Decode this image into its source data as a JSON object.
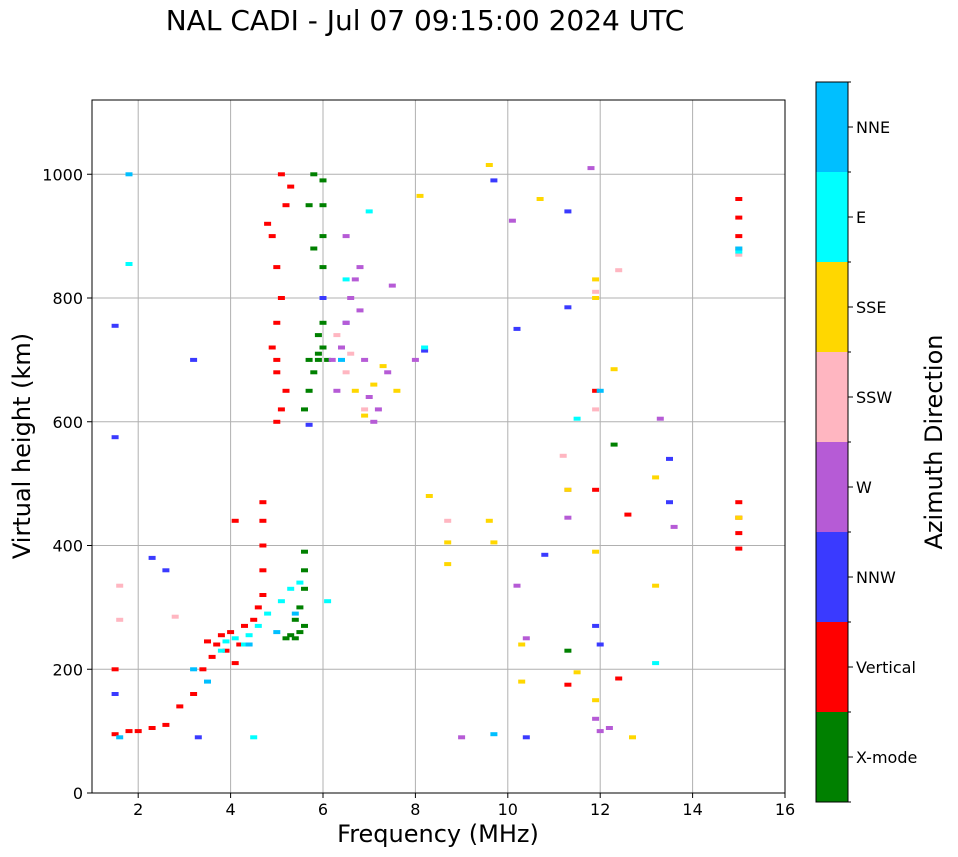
{
  "chart_data": {
    "type": "scatter",
    "title": "NAL CADI - Jul 07 09:15:00 2024 UTC",
    "xlabel": "Frequency (MHz)",
    "ylabel": "Virtual height (km)",
    "xlim": [
      1,
      16
    ],
    "ylim": [
      0,
      1120
    ],
    "xticks": [
      2,
      4,
      6,
      8,
      10,
      12,
      14,
      16
    ],
    "yticks": [
      0,
      200,
      400,
      600,
      800,
      1000
    ],
    "grid": true,
    "colorbar": {
      "label": "Azimuth Direction",
      "categories": [
        {
          "name": "X-mode",
          "color": "#008000"
        },
        {
          "name": "Vertical",
          "color": "#ff0000"
        },
        {
          "name": "NNW",
          "color": "#3a3aff"
        },
        {
          "name": "W",
          "color": "#b65bd6"
        },
        {
          "name": "SSW",
          "color": "#ffb6c1"
        },
        {
          "name": "SSE",
          "color": "#ffd700"
        },
        {
          "name": "E",
          "color": "#00ffff"
        },
        {
          "name": "NNE",
          "color": "#00bfff"
        }
      ]
    },
    "series": [
      {
        "name": "X-mode",
        "points": [
          [
            5.4,
            250
          ],
          [
            5.5,
            260
          ],
          [
            5.6,
            270
          ],
          [
            5.4,
            280
          ],
          [
            5.5,
            300
          ],
          [
            5.6,
            330
          ],
          [
            5.6,
            360
          ],
          [
            5.6,
            390
          ],
          [
            5.3,
            255
          ],
          [
            5.2,
            250
          ],
          [
            5.6,
            620
          ],
          [
            5.7,
            650
          ],
          [
            5.8,
            680
          ],
          [
            5.9,
            700
          ],
          [
            6.0,
            720
          ],
          [
            6.0,
            760
          ],
          [
            6.0,
            800
          ],
          [
            6.0,
            850
          ],
          [
            6.0,
            900
          ],
          [
            6.0,
            950
          ],
          [
            6.0,
            990
          ],
          [
            5.8,
            1000
          ],
          [
            5.7,
            950
          ],
          [
            5.8,
            880
          ],
          [
            5.9,
            740
          ],
          [
            5.7,
            700
          ],
          [
            12.3,
            563
          ],
          [
            11.3,
            230
          ],
          [
            6.1,
            700
          ],
          [
            5.9,
            710
          ]
        ]
      },
      {
        "name": "Vertical",
        "points": [
          [
            1.5,
            95
          ],
          [
            1.8,
            100
          ],
          [
            2.0,
            100
          ],
          [
            2.3,
            105
          ],
          [
            2.6,
            110
          ],
          [
            2.9,
            140
          ],
          [
            3.2,
            160
          ],
          [
            3.4,
            200
          ],
          [
            3.6,
            220
          ],
          [
            3.7,
            240
          ],
          [
            3.8,
            255
          ],
          [
            4.0,
            260
          ],
          [
            4.2,
            240
          ],
          [
            4.3,
            270
          ],
          [
            4.5,
            280
          ],
          [
            4.6,
            300
          ],
          [
            4.7,
            320
          ],
          [
            4.7,
            360
          ],
          [
            4.7,
            400
          ],
          [
            4.7,
            440
          ],
          [
            4.7,
            470
          ],
          [
            4.1,
            440
          ],
          [
            3.5,
            245
          ],
          [
            3.9,
            230
          ],
          [
            4.1,
            210
          ],
          [
            1.5,
            200
          ],
          [
            5.0,
            600
          ],
          [
            5.1,
            620
          ],
          [
            5.2,
            650
          ],
          [
            5.0,
            680
          ],
          [
            4.9,
            720
          ],
          [
            5.0,
            760
          ],
          [
            5.1,
            800
          ],
          [
            5.0,
            850
          ],
          [
            4.9,
            900
          ],
          [
            5.2,
            950
          ],
          [
            5.3,
            980
          ],
          [
            5.1,
            1000
          ],
          [
            4.8,
            920
          ],
          [
            5.0,
            700
          ],
          [
            11.9,
            650
          ],
          [
            11.9,
            490
          ],
          [
            11.3,
            175
          ],
          [
            12.4,
            185
          ],
          [
            12.6,
            450
          ],
          [
            15.0,
            960
          ],
          [
            15.0,
            930
          ],
          [
            15.0,
            900
          ],
          [
            15.0,
            470
          ],
          [
            15.0,
            445
          ],
          [
            15.0,
            420
          ],
          [
            15.0,
            395
          ]
        ]
      },
      {
        "name": "NNW",
        "points": [
          [
            1.5,
            755
          ],
          [
            1.5,
            575
          ],
          [
            1.5,
            160
          ],
          [
            2.3,
            380
          ],
          [
            2.6,
            360
          ],
          [
            3.2,
            700
          ],
          [
            3.3,
            90
          ],
          [
            5.7,
            595
          ],
          [
            6.0,
            800
          ],
          [
            6.5,
            760
          ],
          [
            8.2,
            715
          ],
          [
            10.2,
            750
          ],
          [
            10.4,
            90
          ],
          [
            10.8,
            385
          ],
          [
            11.3,
            940
          ],
          [
            11.3,
            785
          ],
          [
            11.9,
            270
          ],
          [
            12.0,
            240
          ],
          [
            13.5,
            540
          ],
          [
            13.5,
            470
          ],
          [
            9.7,
            990
          ]
        ]
      },
      {
        "name": "W",
        "points": [
          [
            6.2,
            700
          ],
          [
            6.3,
            650
          ],
          [
            6.4,
            720
          ],
          [
            6.5,
            760
          ],
          [
            6.6,
            800
          ],
          [
            6.7,
            830
          ],
          [
            6.8,
            780
          ],
          [
            6.9,
            700
          ],
          [
            7.0,
            640
          ],
          [
            7.1,
            600
          ],
          [
            7.2,
            620
          ],
          [
            7.4,
            680
          ],
          [
            6.5,
            900
          ],
          [
            6.8,
            850
          ],
          [
            7.5,
            820
          ],
          [
            8.0,
            700
          ],
          [
            9.0,
            90
          ],
          [
            10.1,
            925
          ],
          [
            10.2,
            335
          ],
          [
            10.4,
            250
          ],
          [
            11.3,
            490
          ],
          [
            11.8,
            1010
          ],
          [
            11.9,
            120
          ],
          [
            12.0,
            100
          ],
          [
            12.2,
            105
          ],
          [
            13.3,
            605
          ],
          [
            13.6,
            430
          ],
          [
            11.3,
            445
          ]
        ]
      },
      {
        "name": "SSW",
        "points": [
          [
            1.6,
            280
          ],
          [
            6.5,
            680
          ],
          [
            6.6,
            710
          ],
          [
            6.3,
            740
          ],
          [
            6.9,
            620
          ],
          [
            8.7,
            440
          ],
          [
            11.2,
            545
          ],
          [
            11.9,
            620
          ],
          [
            11.9,
            810
          ],
          [
            12.4,
            845
          ],
          [
            15.0,
            870
          ],
          [
            1.6,
            335
          ],
          [
            2.8,
            285
          ]
        ]
      },
      {
        "name": "SSE",
        "points": [
          [
            6.7,
            650
          ],
          [
            6.9,
            610
          ],
          [
            7.1,
            660
          ],
          [
            7.3,
            690
          ],
          [
            7.6,
            650
          ],
          [
            8.1,
            965
          ],
          [
            8.3,
            480
          ],
          [
            8.7,
            405
          ],
          [
            8.7,
            370
          ],
          [
            9.6,
            1015
          ],
          [
            9.6,
            440
          ],
          [
            9.7,
            405
          ],
          [
            10.3,
            240
          ],
          [
            10.3,
            180
          ],
          [
            10.7,
            960
          ],
          [
            11.3,
            490
          ],
          [
            11.5,
            195
          ],
          [
            11.9,
            830
          ],
          [
            11.9,
            800
          ],
          [
            11.9,
            390
          ],
          [
            11.9,
            150
          ],
          [
            12.3,
            685
          ],
          [
            12.7,
            90
          ],
          [
            13.2,
            510
          ],
          [
            13.2,
            335
          ],
          [
            15.0,
            445
          ],
          [
            15.0,
            880
          ]
        ]
      },
      {
        "name": "E",
        "points": [
          [
            3.9,
            245
          ],
          [
            4.1,
            250
          ],
          [
            4.4,
            255
          ],
          [
            4.6,
            270
          ],
          [
            4.8,
            290
          ],
          [
            5.1,
            310
          ],
          [
            5.3,
            330
          ],
          [
            5.5,
            340
          ],
          [
            4.5,
            90
          ],
          [
            1.8,
            855
          ],
          [
            6.1,
            310
          ],
          [
            6.5,
            830
          ],
          [
            7.0,
            940
          ],
          [
            8.2,
            720
          ],
          [
            11.5,
            605
          ],
          [
            13.2,
            210
          ],
          [
            15.0,
            875
          ],
          [
            4.3,
            240
          ],
          [
            3.8,
            230
          ]
        ]
      },
      {
        "name": "NNE",
        "points": [
          [
            1.6,
            90
          ],
          [
            1.8,
            1000
          ],
          [
            3.2,
            200
          ],
          [
            3.5,
            180
          ],
          [
            4.4,
            240
          ],
          [
            5.0,
            260
          ],
          [
            5.4,
            290
          ],
          [
            6.4,
            700
          ],
          [
            9.7,
            95
          ],
          [
            12.0,
            650
          ],
          [
            15.0,
            880
          ]
        ]
      }
    ]
  }
}
